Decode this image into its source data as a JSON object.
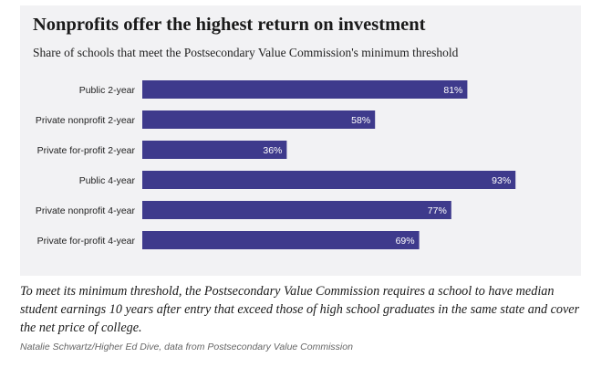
{
  "chart_data": {
    "type": "bar",
    "orientation": "horizontal",
    "title": "Nonprofits offer the highest return on investment",
    "subtitle": "Share of schools that meet the Postsecondary Value Commission's minimum threshold",
    "categories": [
      "Public 2-year",
      "Private nonprofit 2-year",
      "Private for-profit 2-year",
      "Public 4-year",
      "Private nonprofit 4-year",
      "Private for-profit 4-year"
    ],
    "values": [
      81,
      58,
      36,
      93,
      77,
      69
    ],
    "value_labels": [
      "81%",
      "58%",
      "36%",
      "93%",
      "77%",
      "69%"
    ],
    "xlim": [
      0,
      100
    ],
    "grid": false,
    "bar_color": "#3e3a8c"
  },
  "caption": "To meet its minimum threshold, the Postsecondary Value Commission requires a school to have median student earnings 10 years after entry that exceed those of high school graduates in the same state and cover the net price of college.",
  "source": "Natalie Schwartz/Higher Ed Dive, data from Postsecondary Value Commission"
}
